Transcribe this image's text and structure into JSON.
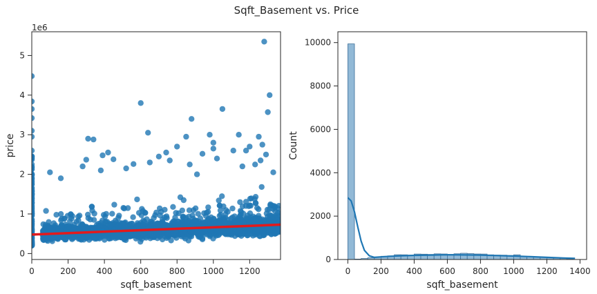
{
  "figure": {
    "suptitle": "Sqft_Basement vs. Price"
  },
  "colors": {
    "scatter": "#1f77b4",
    "regression": "#e31a1c",
    "hist_fill": "#92b9d6",
    "hist_edge": "#3d6f99",
    "kde": "#1f77b4",
    "axis": "#262626"
  },
  "chart_data": [
    {
      "type": "scatter",
      "name": "sqft_basement vs price (regplot)",
      "xlabel": "sqft_basement",
      "ylabel": "price",
      "xlim": [
        0,
        1370
      ],
      "ylim": [
        -150000,
        5600000
      ],
      "y_offset_label": "1e6",
      "xticks": [
        0,
        200,
        400,
        600,
        800,
        1000,
        1200
      ],
      "yticks": [
        0,
        1000000,
        2000000,
        3000000,
        4000000,
        5000000
      ],
      "yticklabels": [
        "0",
        "1",
        "2",
        "3",
        "4",
        "5"
      ],
      "regression_line": {
        "x": [
          0,
          1370
        ],
        "y": [
          480000,
          730000
        ]
      },
      "points": [
        [
          0,
          4480000
        ],
        [
          0,
          3840000
        ],
        [
          0,
          3650000
        ],
        [
          0,
          3420000
        ],
        [
          0,
          3100000
        ],
        [
          0,
          2950000
        ],
        [
          0,
          2600000
        ],
        [
          0,
          2400000
        ],
        [
          0,
          2200000
        ],
        [
          0,
          2000000
        ],
        [
          0,
          1800000
        ],
        [
          0,
          1600000
        ],
        [
          0,
          1400000
        ],
        [
          0,
          1200000
        ],
        [
          0,
          1000000
        ],
        [
          0,
          800000
        ],
        [
          0,
          600000
        ],
        [
          0,
          450000
        ],
        [
          0,
          300000
        ],
        [
          1280,
          5350000
        ],
        [
          1310,
          4000000
        ],
        [
          600,
          3800000
        ],
        [
          1050,
          3650000
        ],
        [
          1300,
          3570000
        ],
        [
          880,
          3400000
        ],
        [
          640,
          3050000
        ],
        [
          980,
          3000000
        ],
        [
          1140,
          3000000
        ],
        [
          850,
          2950000
        ],
        [
          1250,
          2950000
        ],
        [
          310,
          2900000
        ],
        [
          340,
          2880000
        ],
        [
          1000,
          2800000
        ],
        [
          1200,
          2700000
        ],
        [
          1270,
          2750000
        ],
        [
          1110,
          2600000
        ],
        [
          800,
          2700000
        ],
        [
          1000,
          2650000
        ],
        [
          420,
          2550000
        ],
        [
          1180,
          2600000
        ],
        [
          390,
          2480000
        ],
        [
          740,
          2550000
        ],
        [
          940,
          2520000
        ],
        [
          1290,
          2500000
        ],
        [
          300,
          2370000
        ],
        [
          450,
          2380000
        ],
        [
          700,
          2450000
        ],
        [
          760,
          2350000
        ],
        [
          1020,
          2400000
        ],
        [
          870,
          2250000
        ],
        [
          650,
          2300000
        ],
        [
          560,
          2260000
        ],
        [
          280,
          2200000
        ],
        [
          520,
          2150000
        ],
        [
          100,
          2050000
        ],
        [
          380,
          2100000
        ],
        [
          1260,
          2350000
        ],
        [
          1230,
          2250000
        ],
        [
          1160,
          2200000
        ],
        [
          1330,
          2050000
        ],
        [
          160,
          1900000
        ],
        [
          910,
          2000000
        ]
      ],
      "dense_cloud": {
        "x_range": [
          60,
          1370
        ],
        "band_low": [
          200000,
          260000
        ],
        "band_high": [
          1250000,
          1850000
        ],
        "core": [
          300000,
          1100000
        ]
      }
    },
    {
      "type": "histogram",
      "name": "sqft_basement distribution with KDE",
      "xlabel": "sqft_basement",
      "ylabel": "Count",
      "xlim": [
        -60,
        1440
      ],
      "ylim": [
        0,
        10500
      ],
      "xticks": [
        0,
        200,
        400,
        600,
        800,
        1000,
        1200,
        1400
      ],
      "yticks": [
        0,
        2000,
        4000,
        6000,
        8000,
        10000
      ],
      "bin_width": 40,
      "bins_start": [
        0,
        40,
        80,
        120,
        160,
        200,
        240,
        280,
        320,
        360,
        400,
        440,
        480,
        520,
        560,
        600,
        640,
        680,
        720,
        760,
        800,
        840,
        880,
        920,
        960,
        1000,
        1040,
        1080,
        1120,
        1160,
        1200,
        1240,
        1280,
        1320
      ],
      "counts": [
        9940,
        20,
        45,
        80,
        110,
        150,
        170,
        220,
        215,
        205,
        250,
        245,
        235,
        260,
        255,
        240,
        265,
        285,
        270,
        255,
        250,
        215,
        205,
        200,
        185,
        215,
        150,
        130,
        115,
        95,
        85,
        65,
        55,
        35
      ],
      "kde": {
        "x": [
          0,
          20,
          40,
          60,
          80,
          100,
          130,
          160,
          200,
          260,
          320,
          400,
          500,
          600,
          700,
          800,
          900,
          1000,
          1100,
          1200,
          1300,
          1370
        ],
        "y": [
          2850,
          2700,
          2200,
          1500,
          850,
          420,
          170,
          100,
          120,
          150,
          170,
          190,
          205,
          215,
          210,
          200,
          180,
          160,
          130,
          100,
          70,
          55
        ]
      }
    }
  ]
}
